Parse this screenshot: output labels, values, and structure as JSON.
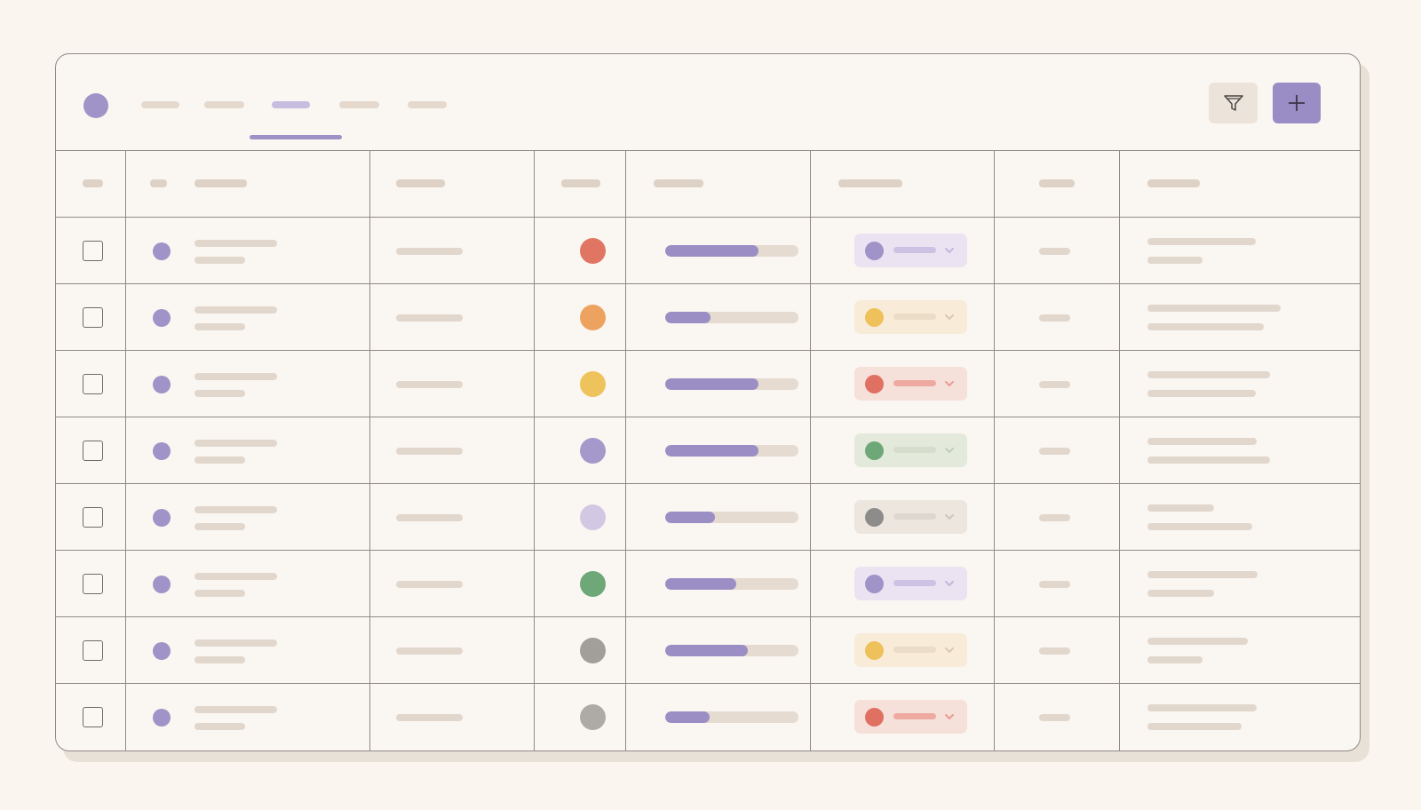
{
  "colors": {
    "accent": "#9b8ec5",
    "background": "#faf5ef",
    "placeholder": "#e2d7cd"
  },
  "toolbar": {
    "logo_icon": "circle-logo",
    "tabs": [
      {
        "label": "",
        "active": false
      },
      {
        "label": "",
        "active": false
      },
      {
        "label": "",
        "active": true
      },
      {
        "label": "",
        "active": false
      },
      {
        "label": "",
        "active": false
      }
    ],
    "filter_icon": "funnel-icon",
    "add_icon": "plus-icon"
  },
  "table": {
    "rows": [
      {
        "status_color": "#e07563",
        "progress": 0.7,
        "tag": {
          "dot": "#a093c8",
          "bg": "#ebe3f1",
          "line": "#cdc2e3",
          "chev": "#c3b8dd"
        }
      },
      {
        "status_color": "#eda25f",
        "progress": 0.34,
        "tag": {
          "dot": "#efc15a",
          "bg": "#f8ebd8",
          "line": "#eadcc6",
          "chev": "#d9c8b3"
        }
      },
      {
        "status_color": "#efc35c",
        "progress": 0.7,
        "tag": {
          "dot": "#e07062",
          "bg": "#f6e0da",
          "line": "#eeaaa0",
          "chev": "#e79e93"
        }
      },
      {
        "status_color": "#a598cb",
        "progress": 0.7,
        "tag": {
          "dot": "#6ea878",
          "bg": "#e4eadb",
          "line": "#d7dccd",
          "chev": "#c3cdb8"
        }
      },
      {
        "status_color": "#d3c8e3",
        "progress": 0.37,
        "tag": {
          "dot": "#8e8c8a",
          "bg": "#ece6df",
          "line": "#dfd7cf",
          "chev": "#cfc6be"
        }
      },
      {
        "status_color": "#6ea878",
        "progress": 0.53,
        "tag": {
          "dot": "#a093c8",
          "bg": "#ebe3f1",
          "line": "#cdc2e3",
          "chev": "#c3b8dd"
        }
      },
      {
        "status_color": "#a19e9b",
        "progress": 0.62,
        "tag": {
          "dot": "#efc15a",
          "bg": "#f8ebd8",
          "line": "#eadcc6",
          "chev": "#d9c8b3"
        }
      },
      {
        "status_color": "#adaaa7",
        "progress": 0.33,
        "tag": {
          "dot": "#e07062",
          "bg": "#f6e0da",
          "line": "#eeaaa0",
          "chev": "#e79e93"
        }
      }
    ]
  }
}
